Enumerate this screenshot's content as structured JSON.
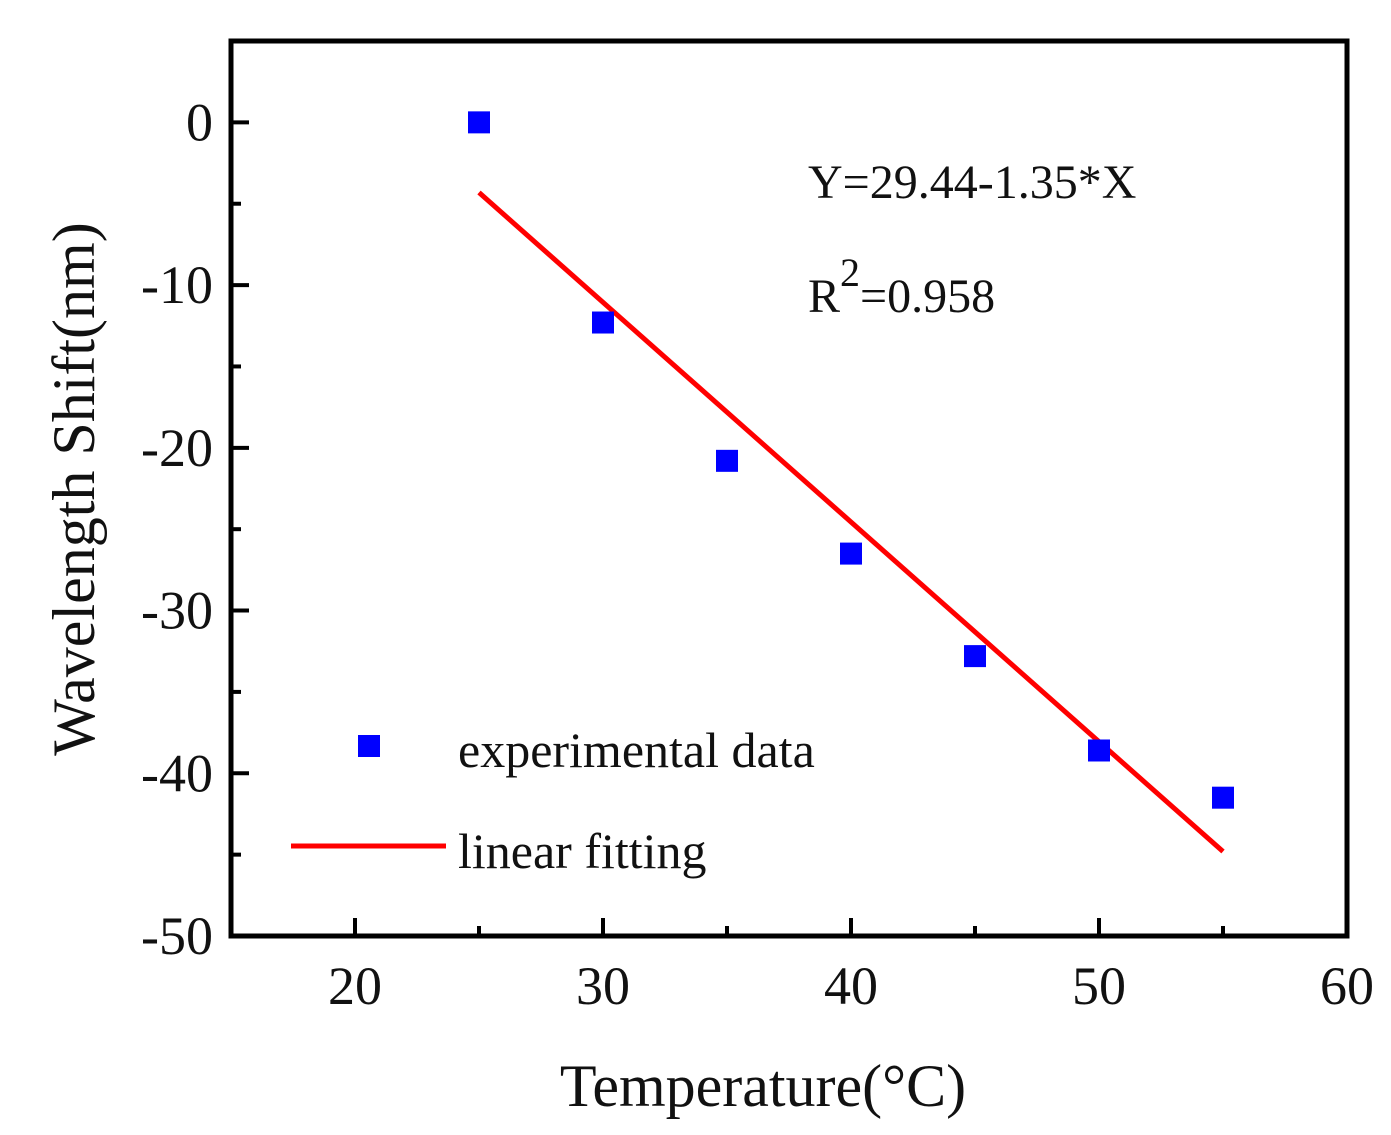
{
  "chart_data": {
    "type": "scatter",
    "title": "",
    "xlabel": "Temperature(°C)",
    "ylabel": "Wavelength Shift(nm)",
    "xlim": [
      15,
      60
    ],
    "ylim": [
      -50,
      5
    ],
    "x_ticks": [
      20,
      30,
      40,
      50,
      60
    ],
    "y_ticks": [
      0,
      -10,
      -20,
      -30,
      -40,
      -50
    ],
    "grid": false,
    "legend_position": "bottom-left",
    "series": [
      {
        "name": "experimental data",
        "kind": "scatter",
        "marker": "square",
        "color": "#0000ff",
        "x": [
          25,
          30,
          35,
          40,
          45,
          50,
          55
        ],
        "y": [
          0,
          -12.3,
          -20.8,
          -26.5,
          -32.8,
          -38.6,
          -41.5
        ]
      },
      {
        "name": "linear fitting",
        "kind": "line",
        "color": "#ff0000",
        "x": [
          25,
          55
        ],
        "y": [
          -4.31,
          -44.81
        ]
      }
    ],
    "annotations": {
      "equation": "Y=29.44-1.35*X",
      "r_squared_prefix": "R",
      "r_squared_exponent": "2",
      "r_squared_value": "=0.958"
    }
  }
}
